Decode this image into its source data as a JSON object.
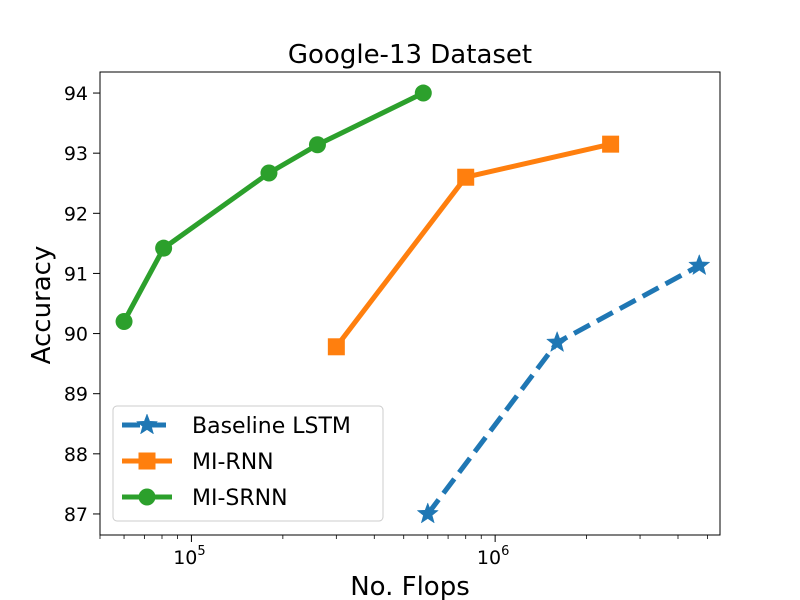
{
  "chart_data": {
    "type": "line",
    "title": "Google-13 Dataset",
    "xlabel": "No. Flops",
    "ylabel": "Accuracy",
    "xscale": "log",
    "xlim": [
      50000,
      5500000
    ],
    "ylim": [
      86.65,
      94.35
    ],
    "x_major_ticks": [
      {
        "value": 100000,
        "base": "10",
        "exp": "5"
      },
      {
        "value": 1000000,
        "base": "10",
        "exp": "6"
      }
    ],
    "y_ticks": [
      87,
      88,
      89,
      90,
      91,
      92,
      93,
      94
    ],
    "grid": false,
    "legend_position": "lower-left",
    "series": [
      {
        "name": "Baseline LSTM",
        "color": "#1f77b4",
        "line_style": "dashed",
        "marker": "star",
        "points": [
          {
            "x": 600000,
            "y": 87.0
          },
          {
            "x": 1600000,
            "y": 89.85
          },
          {
            "x": 4700000,
            "y": 91.13
          }
        ]
      },
      {
        "name": "MI-RNN",
        "color": "#ff7f0e",
        "line_style": "solid",
        "marker": "square",
        "points": [
          {
            "x": 300000,
            "y": 89.78
          },
          {
            "x": 800000,
            "y": 92.6
          },
          {
            "x": 2400000,
            "y": 93.15
          }
        ]
      },
      {
        "name": "MI-SRNN",
        "color": "#2ca02c",
        "line_style": "solid",
        "marker": "circle",
        "points": [
          {
            "x": 60000,
            "y": 90.2
          },
          {
            "x": 81000,
            "y": 91.42
          },
          {
            "x": 180000,
            "y": 92.67
          },
          {
            "x": 260000,
            "y": 93.14
          },
          {
            "x": 580000,
            "y": 94.0
          }
        ]
      }
    ]
  }
}
